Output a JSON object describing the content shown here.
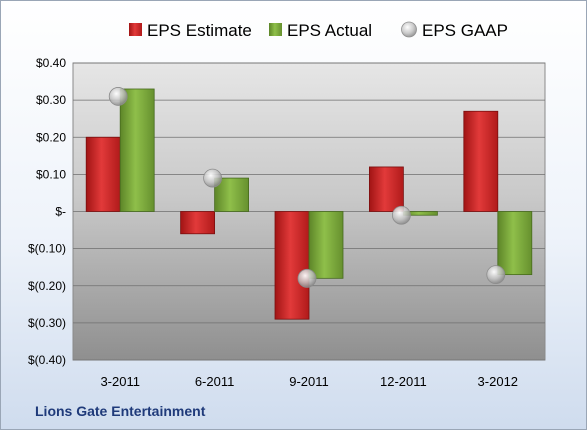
{
  "chart_data": {
    "type": "bar",
    "categories": [
      "3-2011",
      "6-2011",
      "9-2011",
      "12-2011",
      "3-2012"
    ],
    "series": [
      {
        "name": "EPS Estimate",
        "kind": "bar",
        "color": "#d42a2a",
        "values": [
          0.2,
          -0.06,
          -0.29,
          0.12,
          0.27
        ]
      },
      {
        "name": "EPS Actual",
        "kind": "bar",
        "color": "#79a63a",
        "values": [
          0.33,
          0.09,
          -0.18,
          -0.01,
          -0.17
        ]
      },
      {
        "name": "EPS GAAP",
        "kind": "marker",
        "color": "#c8c8c8",
        "values": [
          0.31,
          0.09,
          -0.18,
          -0.01,
          -0.17
        ]
      }
    ],
    "ylim": [
      -0.4,
      0.4
    ],
    "yticks": [
      0.4,
      0.3,
      0.2,
      0.1,
      0.0,
      -0.1,
      -0.2,
      -0.3,
      -0.4
    ],
    "ytick_labels": [
      "$0.40",
      "$0.30",
      "$0.20",
      "$0.10",
      "$-",
      "$(0.10)",
      "$(0.20)",
      "$(0.30)",
      "$(0.40)"
    ],
    "legend_position": "top",
    "grid": true
  },
  "footer": {
    "company": "Lions Gate Entertainment"
  }
}
